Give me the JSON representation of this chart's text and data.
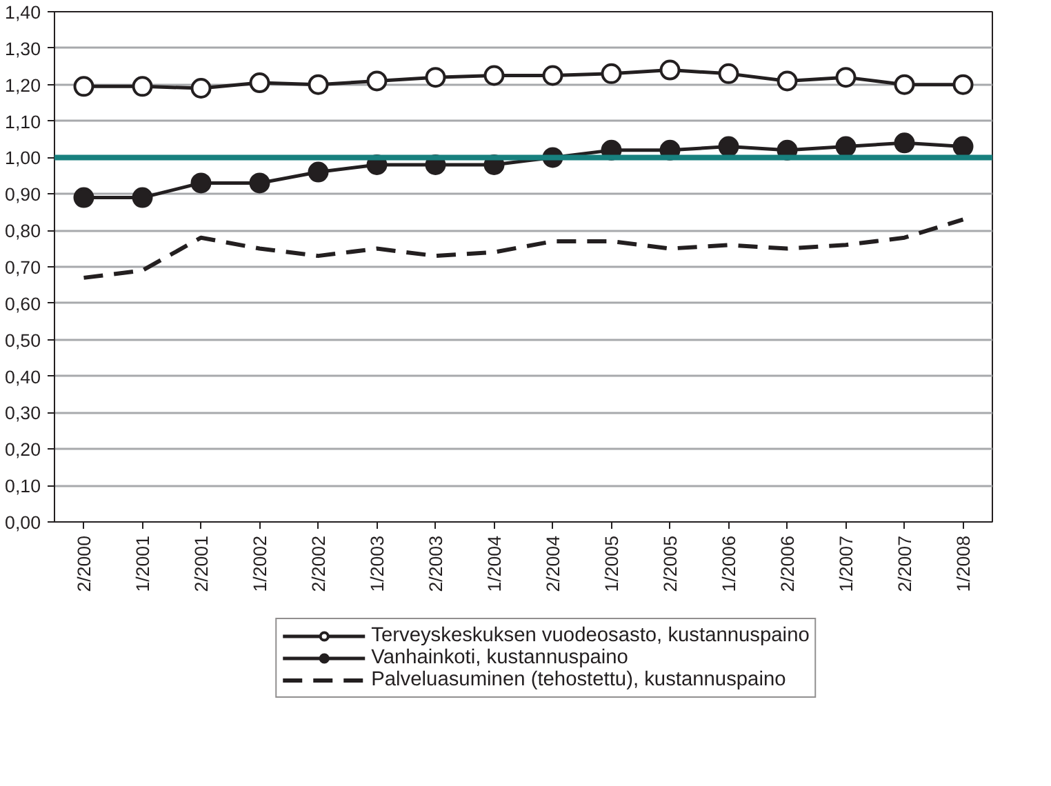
{
  "chart_data": {
    "type": "line",
    "categories": [
      "2/2000",
      "1/2001",
      "2/2001",
      "1/2002",
      "2/2002",
      "1/2003",
      "2/2003",
      "1/2004",
      "2/2004",
      "1/2005",
      "2/2005",
      "1/2006",
      "2/2006",
      "1/2007",
      "2/2007",
      "1/2008"
    ],
    "series": [
      {
        "name": "Terveyskeskuksen vuodeosasto, kustannuspaino",
        "color": "#231f20",
        "marker": "circle",
        "line_style": "solid",
        "values": [
          1.195,
          1.195,
          1.19,
          1.205,
          1.2,
          1.21,
          1.22,
          1.225,
          1.225,
          1.23,
          1.24,
          1.23,
          1.21,
          1.22,
          1.2,
          1.2
        ]
      },
      {
        "name": "Vanhainkoti, kustannuspaino",
        "color": "#231f20",
        "marker": "circle",
        "line_style": "solid",
        "values": [
          0.89,
          0.89,
          0.93,
          0.93,
          0.96,
          0.98,
          0.98,
          0.98,
          1.0,
          1.02,
          1.02,
          1.03,
          1.02,
          1.03,
          1.04,
          1.03
        ]
      },
      {
        "name": "Palveluasuminen (tehostettu), kustannuspaino",
        "color": "#231f20",
        "marker": "none",
        "line_style": "dashed",
        "values": [
          0.67,
          0.69,
          0.78,
          0.75,
          0.73,
          0.75,
          0.73,
          0.74,
          0.77,
          0.77,
          0.75,
          0.76,
          0.75,
          0.76,
          0.78,
          0.83
        ]
      }
    ],
    "ref_lines": [
      {
        "axis": "y",
        "value": 1.0,
        "label": null,
        "color": "#17807e"
      }
    ],
    "ylim": [
      0,
      1.4
    ],
    "yticks": [
      {
        "value": 0,
        "label": "0,00"
      },
      {
        "value": 0.1,
        "label": "0,10"
      },
      {
        "value": 0.2,
        "label": "0,20"
      },
      {
        "value": 0.3,
        "label": "0,30"
      },
      {
        "value": 0.4,
        "label": "0,40"
      },
      {
        "value": 0.5,
        "label": "0,50"
      },
      {
        "value": 0.6,
        "label": "0,60"
      },
      {
        "value": 0.7,
        "label": "0,70"
      },
      {
        "value": 0.8,
        "label": "0,80"
      },
      {
        "value": 0.9,
        "label": "0,90"
      },
      {
        "value": 1.0,
        "label": "1,00"
      },
      {
        "value": 1.1,
        "label": "1,10"
      },
      {
        "value": 1.2,
        "label": "1,20"
      },
      {
        "value": 1.3,
        "label": "1,30"
      },
      {
        "value": 1.4,
        "label": "1,40"
      }
    ],
    "grid": "y",
    "legend": "bottom"
  }
}
